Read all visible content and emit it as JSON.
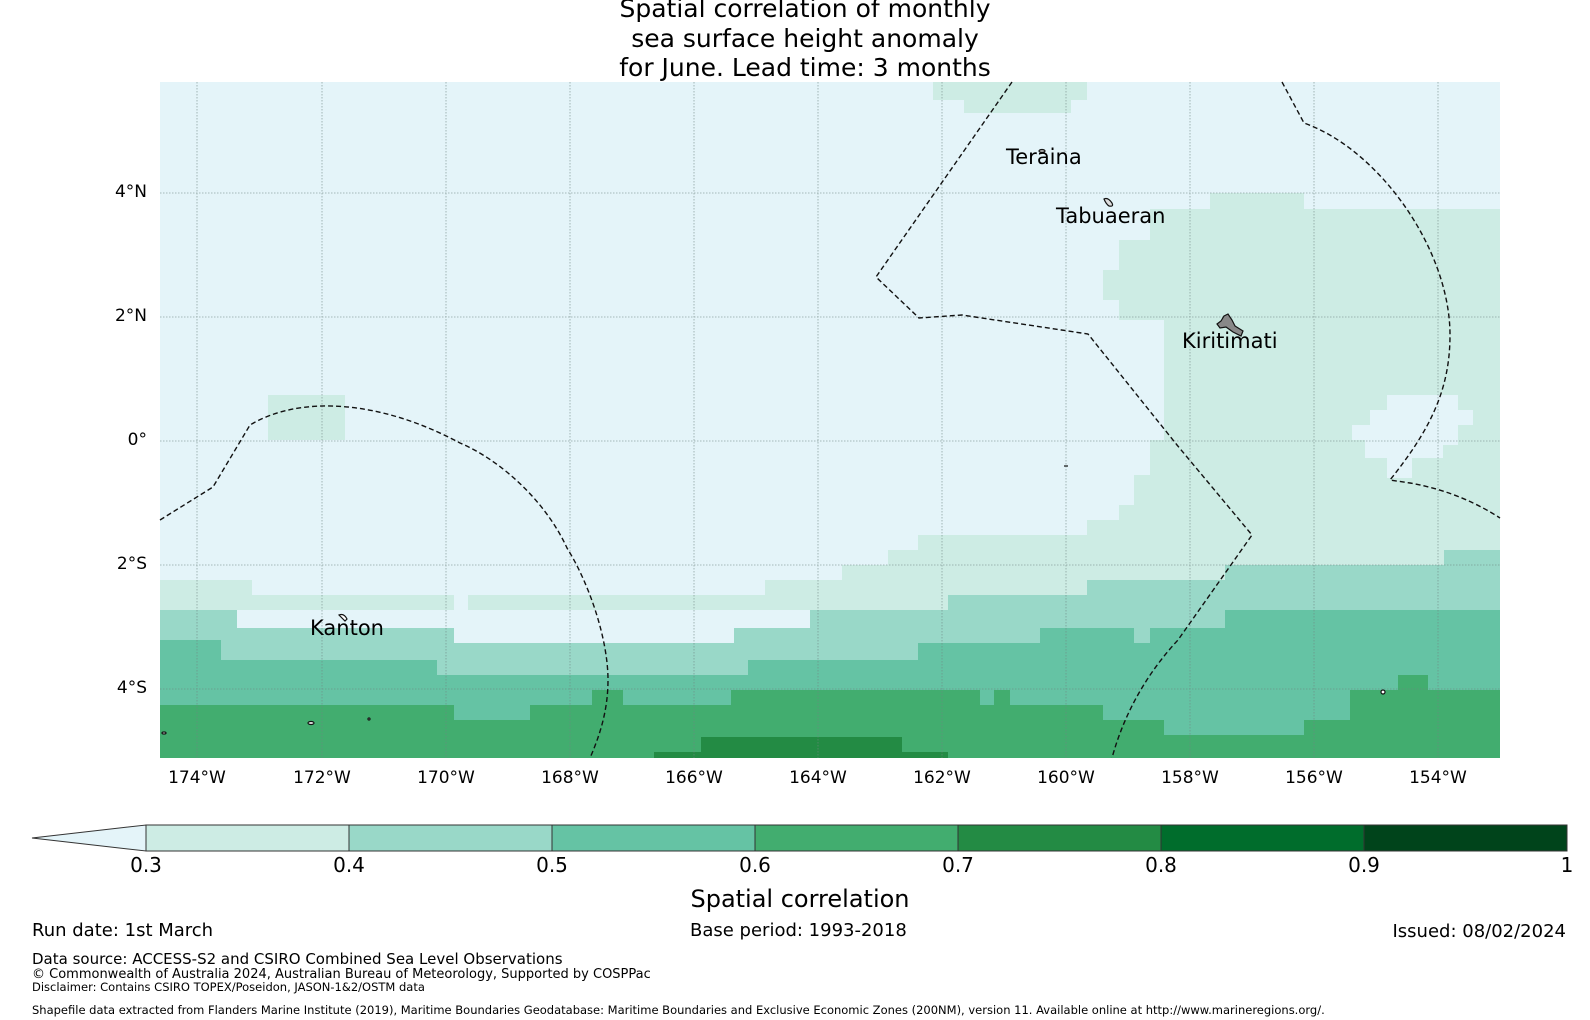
{
  "title": {
    "line1": "Spatial correlation of monthly",
    "line2": "sea surface height anomaly",
    "line3": "for June. Lead time: 3 months"
  },
  "map": {
    "lat_labels": [
      "4°N",
      "2°N",
      "0°",
      "2°S",
      "4°S"
    ],
    "lon_labels": [
      "174°W",
      "172°W",
      "170°W",
      "168°W",
      "166°W",
      "164°W",
      "162°W",
      "160°W",
      "158°W",
      "156°W",
      "154°W"
    ],
    "places": {
      "teraina": "Teraina",
      "tabuaeran": "Tabuaeran",
      "kiritimati": "Kiritimati",
      "kanton": "Kanton"
    },
    "colors": {
      "ocean_low": "#e4f4f9",
      "c03": "#cdece4",
      "c04": "#99d8c8",
      "c05": "#65c3a4",
      "c06": "#42ad6f",
      "c07": "#238b44",
      "c08": "#006d2c",
      "c09": "#00441b"
    }
  },
  "colorbar": {
    "ticks": [
      "0.3",
      "0.4",
      "0.5",
      "0.6",
      "0.7",
      "0.8",
      "0.9",
      "1"
    ],
    "label": "Spatial correlation"
  },
  "footer": {
    "run_date": "Run date: 1st March",
    "base_period": "Base period: 1993-2018",
    "issued": "Issued: 08/02/2024",
    "data_source": "Data source: ACCESS-S2 and CSIRO Combined Sea Level Observations",
    "copyright": "© Commonwealth of Australia 2024, Australian Bureau of Meteorology, Supported by COSPPac",
    "disclaimer": "Disclaimer: Contains CSIRO TOPEX/Poseidon, JASON-1&2/OSTM data",
    "shapefile": "Shapefile data extracted from Flanders Marine Institute (2019), Maritime Boundaries Geodatabase: Maritime Boundaries and Exclusive Economic Zones (200NM), version 11. Available online at http://www.marineregions.org/."
  }
}
